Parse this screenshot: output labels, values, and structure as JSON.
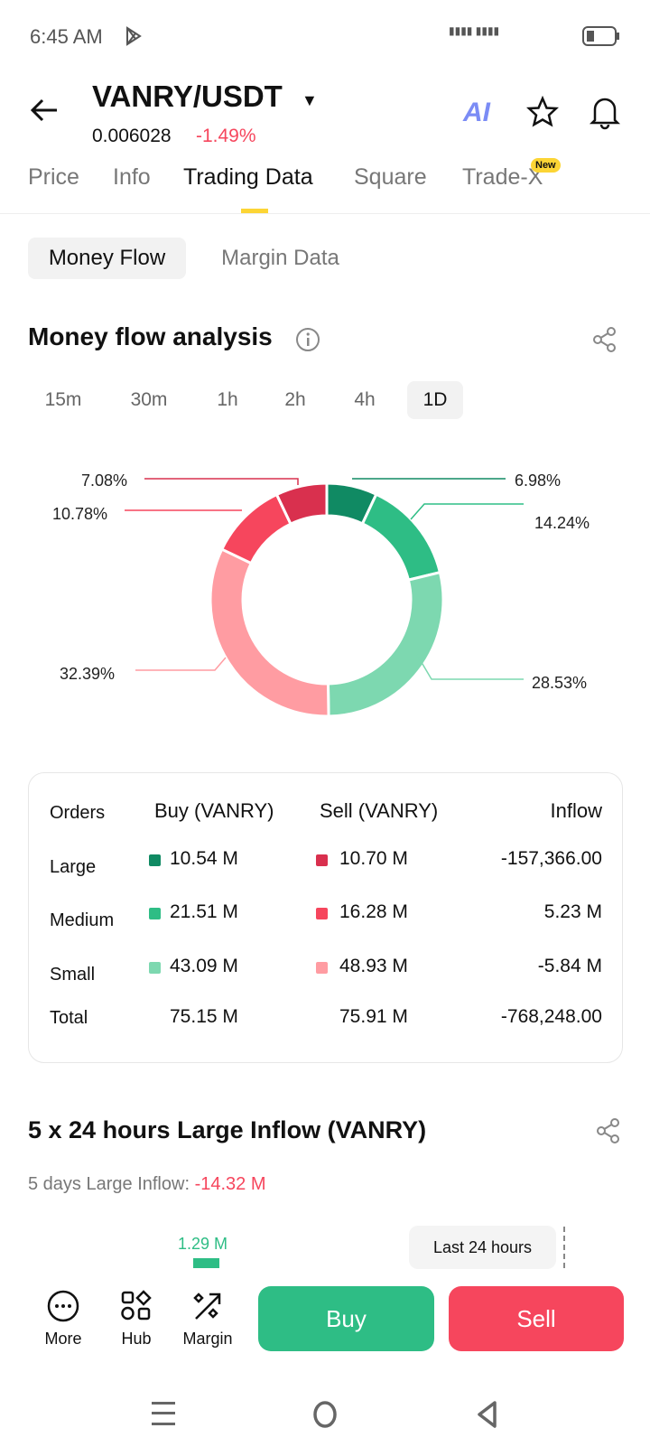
{
  "status": {
    "time": "6:45 AM"
  },
  "header": {
    "pair": "VANRY/USDT",
    "price": "0.006028",
    "change": "-1.49%",
    "ai_label": "AI"
  },
  "tabs": [
    {
      "label": "Price"
    },
    {
      "label": "Info"
    },
    {
      "label": "Trading Data"
    },
    {
      "label": "Square"
    },
    {
      "label": "Trade-X"
    }
  ],
  "new_badge": "New",
  "subtabs": [
    {
      "label": "Money Flow"
    },
    {
      "label": "Margin Data"
    }
  ],
  "section1": {
    "title": "Money flow analysis"
  },
  "timeframes": [
    "15m",
    "30m",
    "1h",
    "2h",
    "4h",
    "1D"
  ],
  "chart_data": {
    "type": "pie",
    "title": "Money flow analysis",
    "slices": [
      {
        "name": "Large Buy",
        "value": 6.98,
        "label": "6.98%",
        "color": "#108a63"
      },
      {
        "name": "Medium Buy",
        "value": 14.24,
        "label": "14.24%",
        "color": "#2ebd85"
      },
      {
        "name": "Small Buy",
        "value": 28.53,
        "label": "28.53%",
        "color": "#7dd8b0"
      },
      {
        "name": "Small Sell",
        "value": 32.39,
        "label": "32.39%",
        "color": "#ff9ca2"
      },
      {
        "name": "Medium Sell",
        "value": 10.78,
        "label": "10.78%",
        "color": "#f6465d"
      },
      {
        "name": "Large Sell",
        "value": 7.08,
        "label": "7.08%",
        "color": "#d9304e"
      }
    ]
  },
  "table": {
    "headers": [
      "Orders",
      "Buy (VANRY)",
      "Sell (VANRY)",
      "Inflow"
    ],
    "rows": [
      {
        "order": "Large",
        "buy": "10.54 M",
        "sell": "10.70 M",
        "inflow": "-157,366.00"
      },
      {
        "order": "Medium",
        "buy": "21.51 M",
        "sell": "16.28 M",
        "inflow": "5.23 M"
      },
      {
        "order": "Small",
        "buy": "43.09 M",
        "sell": "48.93 M",
        "inflow": "-5.84 M"
      },
      {
        "order": "Total",
        "buy": "75.15 M",
        "sell": "75.91 M",
        "inflow": "-768,248.00"
      }
    ]
  },
  "section2": {
    "title": "5 x 24 hours Large Inflow (VANRY)",
    "subtitle_label": "5 days Large Inflow:",
    "subtitle_value": "-14.32 M",
    "bar_label": "1.29 M",
    "tooltip": "Last 24 hours"
  },
  "bottom": {
    "more": "More",
    "hub": "Hub",
    "margin": "Margin",
    "buy": "Buy",
    "sell": "Sell"
  }
}
